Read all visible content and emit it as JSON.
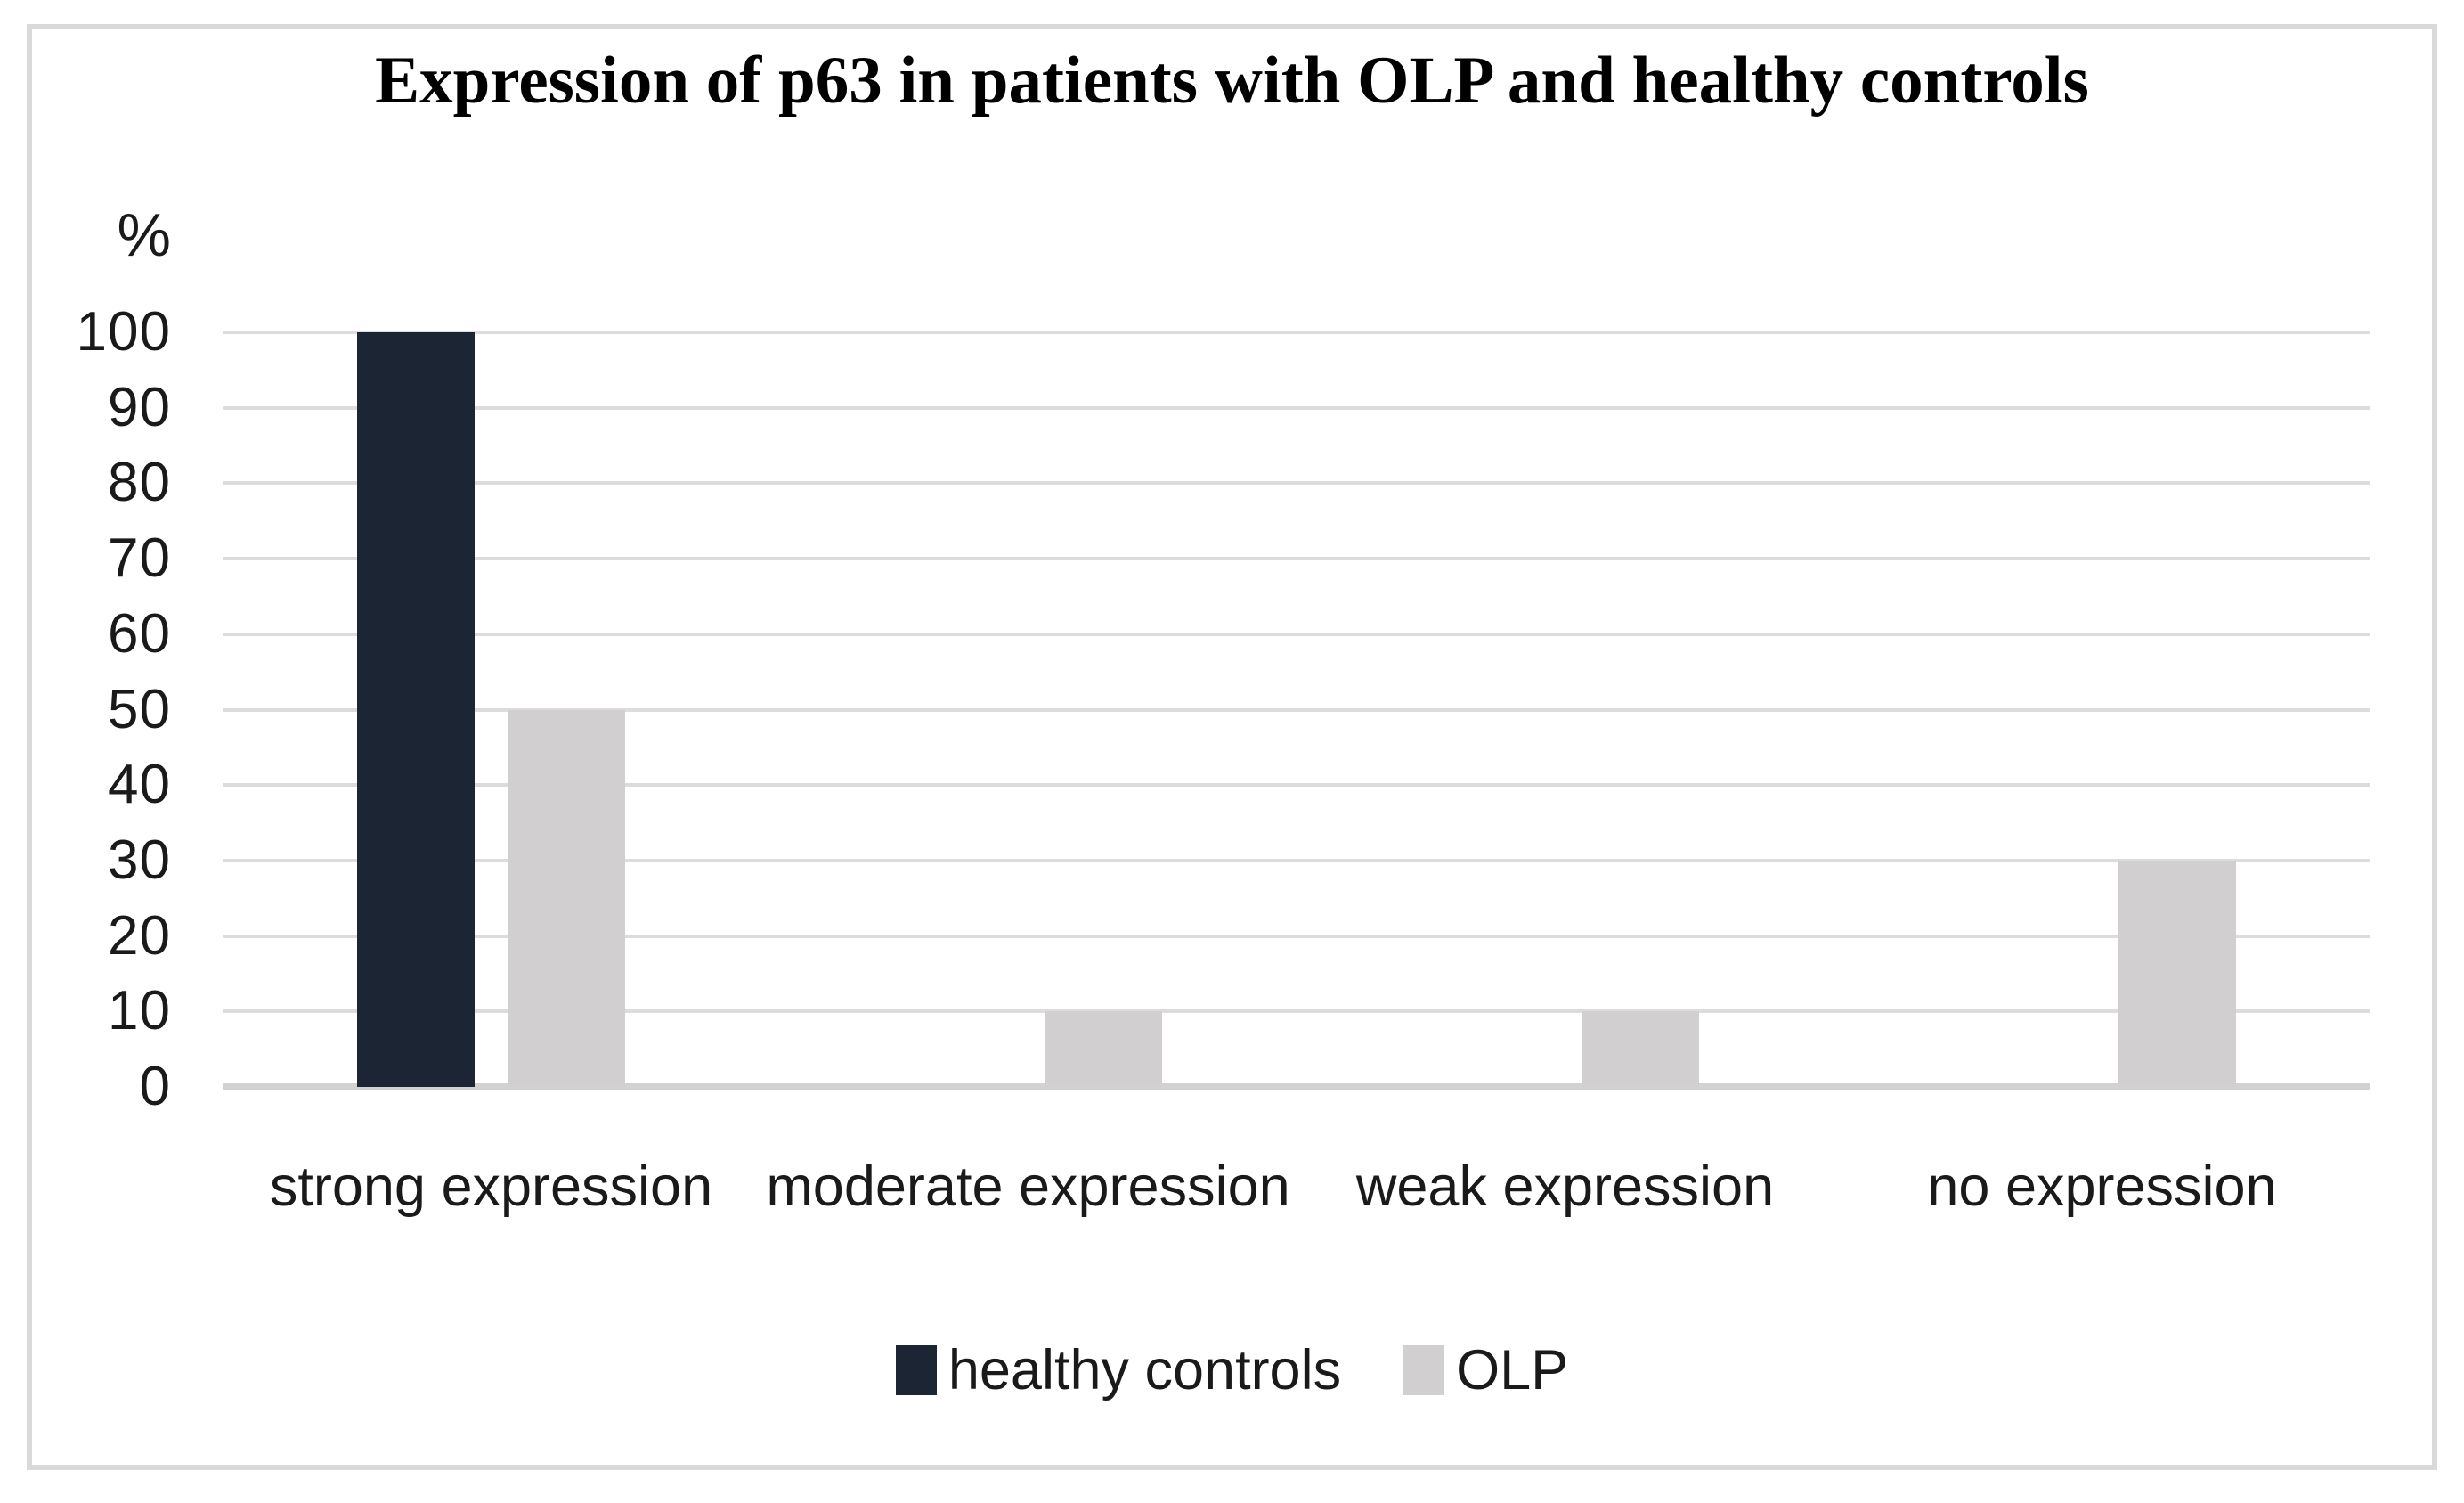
{
  "chart_data": {
    "type": "bar",
    "title": "Expression of p63 in patients with OLP and healthy controls",
    "ylabel": "%",
    "xlabel": "",
    "categories": [
      "strong expression",
      "moderate expression",
      "weak expression",
      "no expression"
    ],
    "series": [
      {
        "name": "healthy controls",
        "color": "#1b2533",
        "values": [
          100,
          0,
          0,
          0
        ]
      },
      {
        "name": "OLP",
        "color": "#d2cfd0",
        "values": [
          50,
          10,
          10,
          30
        ]
      }
    ],
    "ylim": [
      0,
      100
    ],
    "yticks": [
      0,
      10,
      20,
      30,
      40,
      50,
      60,
      70,
      80,
      90,
      100
    ],
    "grid": "horizontal",
    "legend_position": "bottom"
  }
}
